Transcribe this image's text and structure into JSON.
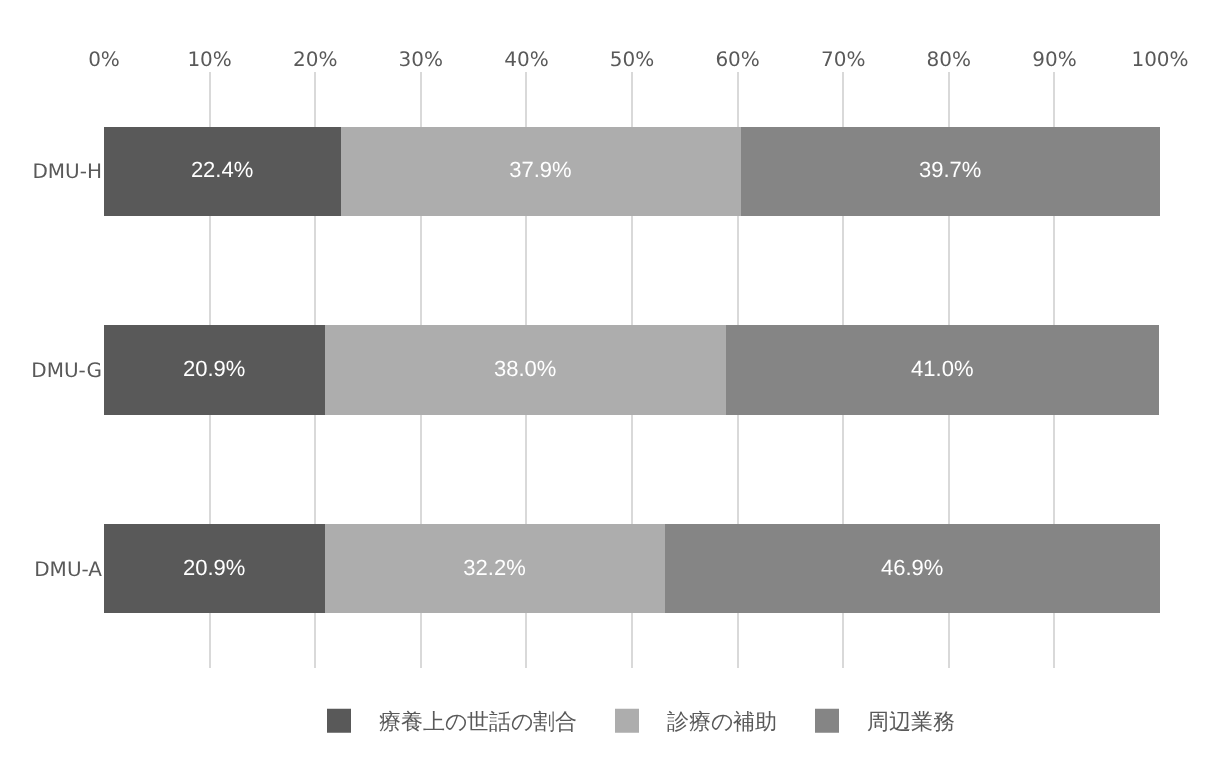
{
  "chart_data": {
    "type": "bar",
    "orientation": "horizontal",
    "stacked": true,
    "categories": [
      "DMU-H",
      "DMU-G",
      "DMU-A"
    ],
    "series": [
      {
        "name": "療養上の世話の割合",
        "color": "#595959",
        "values": [
          22.4,
          20.9,
          20.9
        ],
        "value_labels": [
          "22.4%",
          "20.9%",
          "20.9%"
        ]
      },
      {
        "name": "診療の補助",
        "color": "#adadad",
        "values": [
          37.9,
          38.0,
          32.2
        ],
        "value_labels": [
          "37.9%",
          "38.0%",
          "32.2%"
        ]
      },
      {
        "name": "周辺業務",
        "color": "#858585",
        "values": [
          39.7,
          41.0,
          46.9
        ],
        "value_labels": [
          "39.7%",
          "41.0%",
          "46.9%"
        ]
      }
    ],
    "xlim": [
      0,
      100
    ],
    "xticks": [
      {
        "value": 0,
        "label": "0%"
      },
      {
        "value": 10,
        "label": "10%"
      },
      {
        "value": 20,
        "label": "20%"
      },
      {
        "value": 30,
        "label": "30%"
      },
      {
        "value": 40,
        "label": "40%"
      },
      {
        "value": 50,
        "label": "50%"
      },
      {
        "value": 60,
        "label": "60%"
      },
      {
        "value": 70,
        "label": "70%"
      },
      {
        "value": 80,
        "label": "80%"
      },
      {
        "value": 90,
        "label": "90%"
      },
      {
        "value": 100,
        "label": "100%"
      }
    ],
    "grid": "x",
    "legend": "bottom"
  }
}
